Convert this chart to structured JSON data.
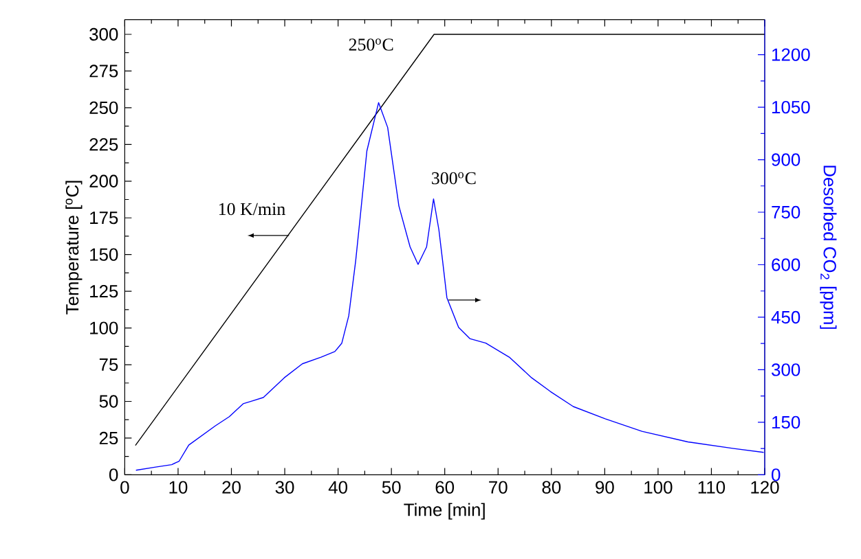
{
  "chart_data": {
    "type": "line",
    "xlabel": "Time [min]",
    "ylabel": "Temperature [$^{o}$C]",
    "y2label": "Desorbed CO$_{2}$ [ppm]",
    "xlim": [
      0,
      120
    ],
    "xticks": [
      0,
      10,
      20,
      30,
      40,
      50,
      60,
      70,
      80,
      90,
      100,
      110,
      120
    ],
    "ylim": [
      0,
      310
    ],
    "yticks": [
      0,
      25,
      50,
      75,
      100,
      125,
      150,
      175,
      200,
      225,
      250,
      275,
      300
    ],
    "y2lim": [
      0,
      1300
    ],
    "y2ticks": [
      0,
      150,
      300,
      450,
      600,
      750,
      900,
      1050,
      1200
    ],
    "grid": false,
    "marker": "none",
    "line_style": "solid",
    "annotations": [
      "250$^{o}$C",
      "300$^{o}$C",
      "10 K/min"
    ],
    "series": [
      {
        "color": "#000000",
        "axis": "y",
        "x": [
          2,
          58,
          120
        ],
        "values": [
          20,
          300,
          300
        ]
      },
      {
        "color": "#0000ff",
        "axis": "y2",
        "x": [
          2.1,
          5.8,
          8.8,
          10.2,
          12.0,
          17.0,
          19.6,
          22.2,
          23.9,
          26.0,
          29.9,
          33.3,
          36.8,
          39.4,
          40.7,
          42.0,
          43.3,
          44.1,
          45.4,
          47.6,
          49.3,
          51.4,
          53.5,
          55.0,
          56.6,
          57.9,
          58.9,
          59.6,
          60.4,
          62.6,
          64.7,
          67.7,
          72.1,
          76.3,
          79.8,
          84.1,
          90.1,
          97.0,
          105.6,
          114.2,
          119.8
        ],
        "values": [
          13,
          22,
          29,
          39,
          85,
          140,
          166,
          203,
          211,
          221,
          277,
          317,
          336,
          352,
          376,
          454,
          611,
          729,
          925,
          1063,
          992,
          768,
          651,
          601,
          651,
          788,
          700,
          611,
          506,
          421,
          389,
          376,
          336,
          277,
          238,
          195,
          160,
          124,
          94,
          75,
          64
        ]
      }
    ]
  }
}
